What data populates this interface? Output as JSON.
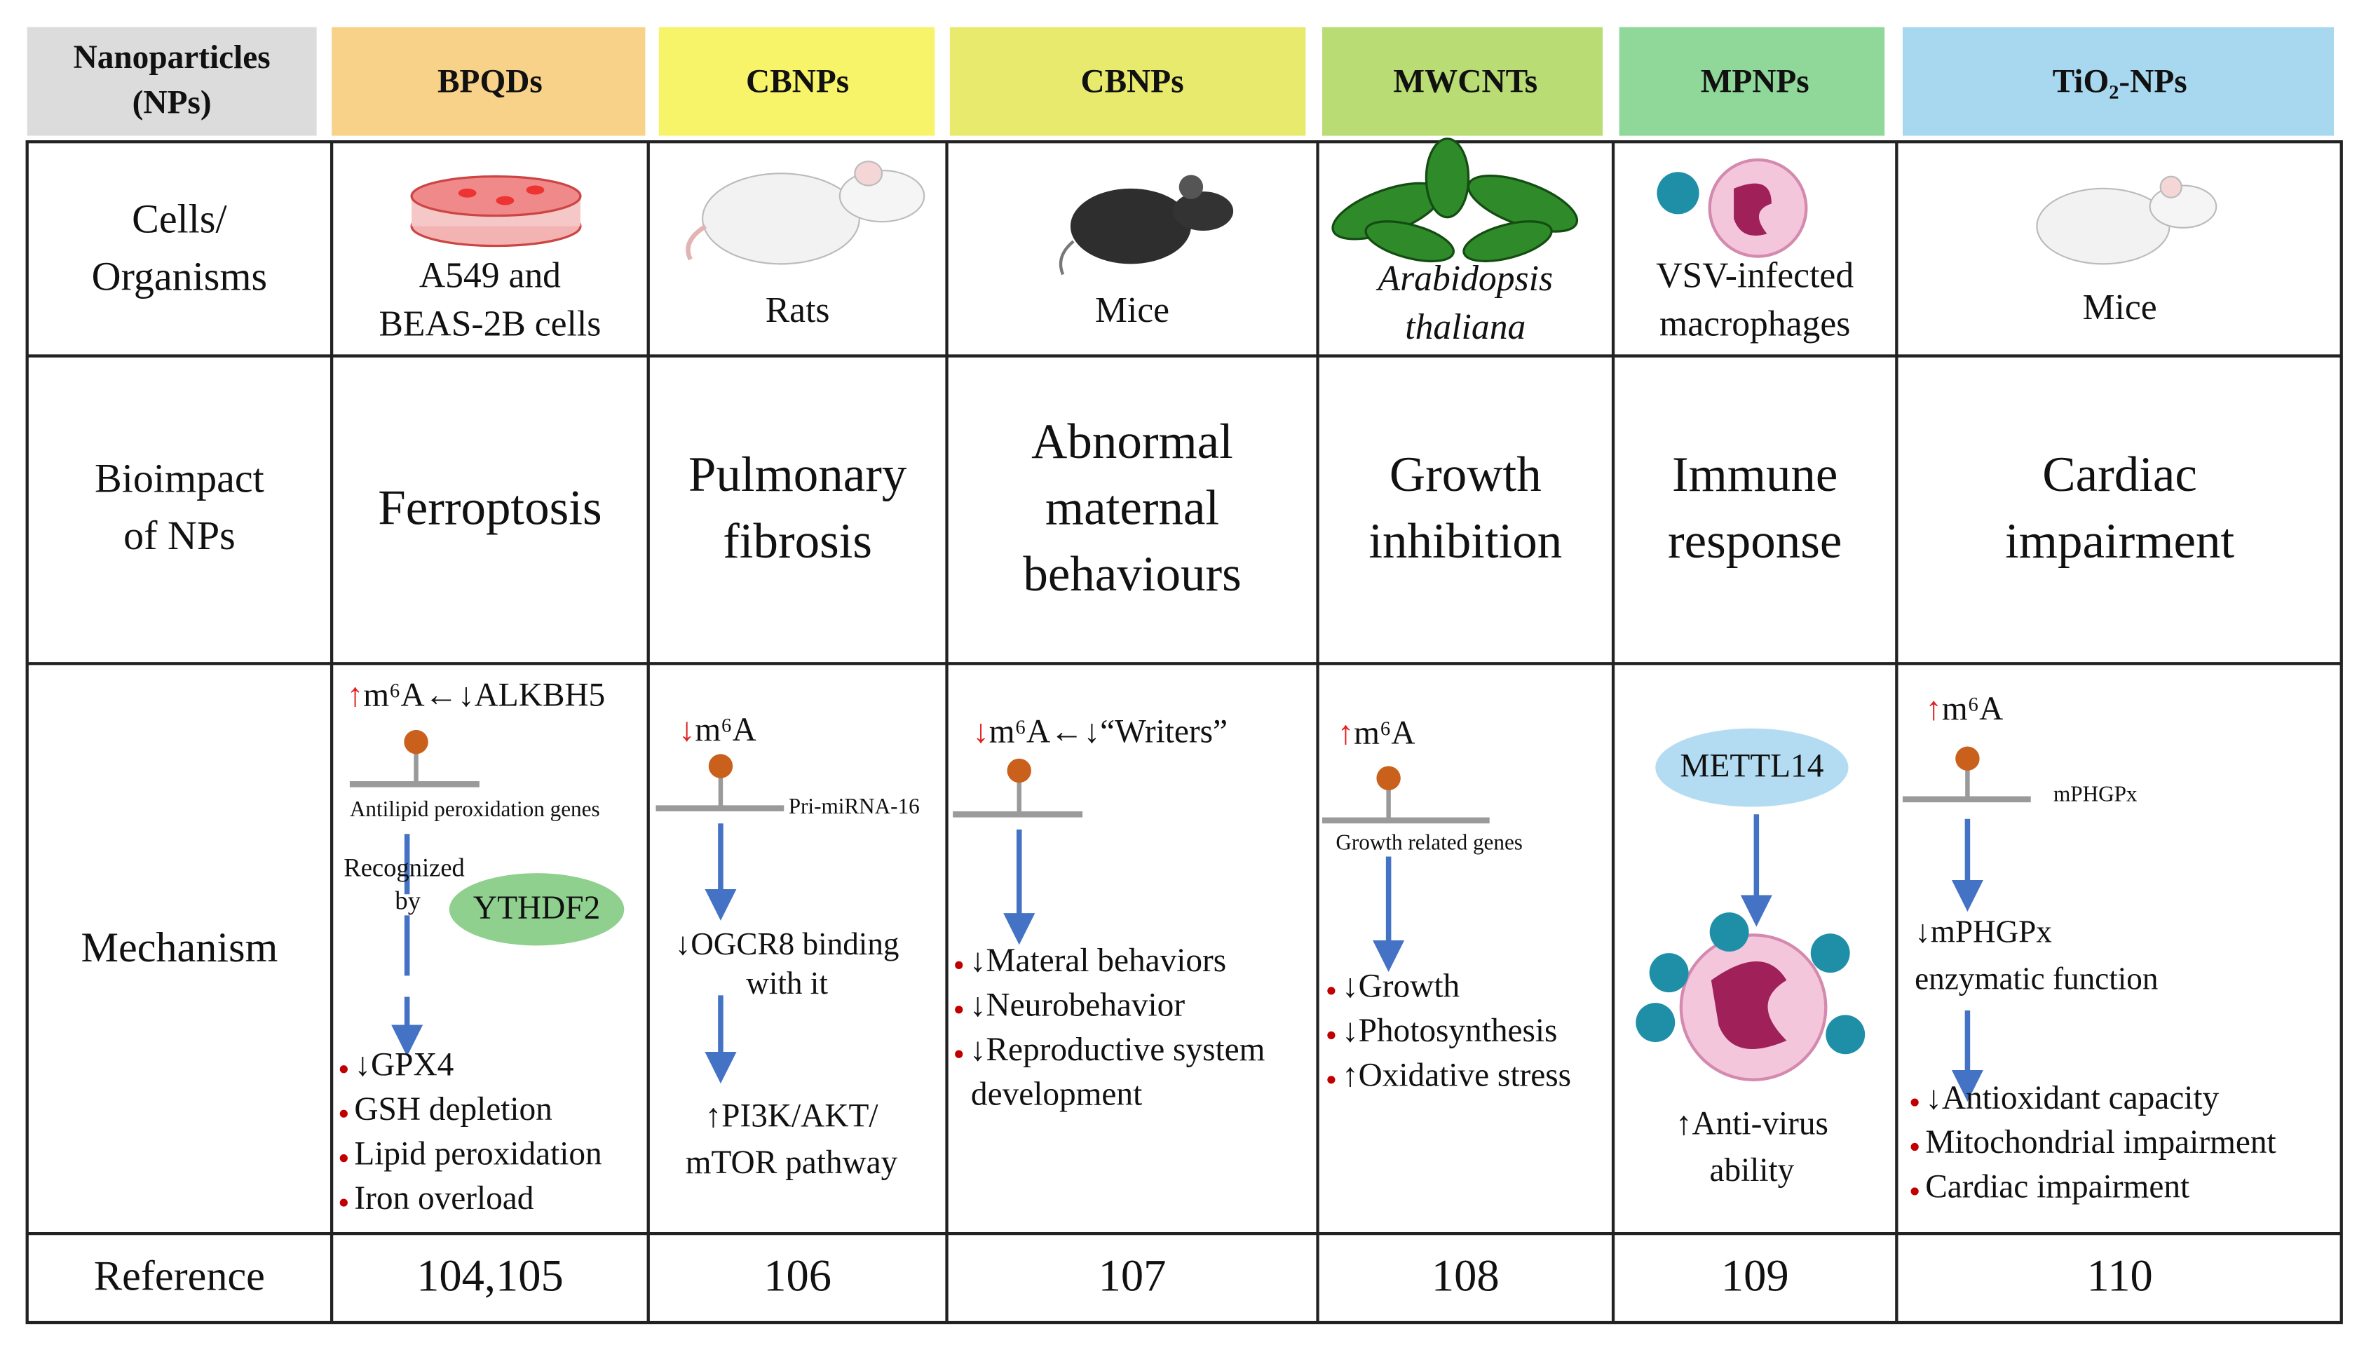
{
  "header": {
    "corner": [
      "Nanoparticles",
      "(NPs)"
    ],
    "columns": [
      "BPQDs",
      "CBNPs",
      "CBNPs",
      "MWCNTs",
      "MPNPs",
      "TiO₂-NPs"
    ]
  },
  "rows": {
    "organisms": {
      "label": [
        "Cells/",
        "Organisms"
      ],
      "cells": [
        [
          "A549 and",
          "BEAS-2B cells"
        ],
        [
          "Rats"
        ],
        [
          "Mice"
        ],
        [
          "Arabidopsis",
          "thaliana"
        ],
        [
          "VSV-infected",
          "macrophages"
        ],
        [
          "Mice"
        ]
      ]
    },
    "bioimpact": {
      "label": [
        "Bioimpact",
        "of NPs"
      ],
      "cells": [
        [
          "Ferroptosis"
        ],
        [
          "Pulmonary",
          "fibrosis"
        ],
        [
          "Abnormal",
          "maternal",
          "behaviours"
        ],
        [
          "Growth",
          "inhibition"
        ],
        [
          "Immune",
          "response"
        ],
        [
          "Cardiac",
          "impairment"
        ]
      ]
    },
    "mechanism": {
      "label": "Mechanism",
      "cells": [
        {
          "m6a": {
            "arrow": "↑",
            "text": "m⁶A←↓ALKBH5"
          },
          "target": "Antilipid peroxidation genes",
          "recognized": [
            "Recognized",
            "by"
          ],
          "reader": "YTHDF2",
          "effects": [
            [
              "↓GPX4"
            ],
            [
              "GSH depletion"
            ],
            [
              "Lipid peroxidation"
            ],
            [
              "Iron overload"
            ]
          ]
        },
        {
          "m6a": {
            "arrow": "↓",
            "text": "m⁶A"
          },
          "target": "Pri-miRNA-16",
          "step": [
            "↓OGCR8 binding",
            "with it"
          ],
          "outcome": [
            "↑PI3K/AKT/",
            "mTOR pathway"
          ]
        },
        {
          "m6a": {
            "arrow": "↓",
            "text": "m⁶A←↓“Writers”"
          },
          "effects": [
            [
              "↓Materal behaviors"
            ],
            [
              "↓Neurobehavior"
            ],
            [
              "↓Reproductive system",
              "development"
            ]
          ]
        },
        {
          "m6a": {
            "arrow": "↑",
            "text": "m⁶A"
          },
          "target": "Growth related genes",
          "effects": [
            [
              "↓Growth"
            ],
            [
              "↓Photosynthesis"
            ],
            [
              "↑Oxidative stress"
            ]
          ]
        },
        {
          "enzyme": "METTL14",
          "outcome": [
            "↑Anti-virus",
            "ability"
          ]
        },
        {
          "m6a": {
            "arrow": "↑",
            "text": "m⁶A"
          },
          "target": "mPHGPx",
          "step": [
            "↓mPHGPx",
            "enzymatic function"
          ],
          "effects": [
            [
              "↓Antioxidant capacity"
            ],
            [
              "Mitochondrial impairment"
            ],
            [
              "Cardiac impairment"
            ]
          ]
        }
      ]
    },
    "reference": {
      "label": "Reference",
      "cells": [
        "104,105",
        "106",
        "107",
        "108",
        "109",
        "110"
      ]
    }
  }
}
